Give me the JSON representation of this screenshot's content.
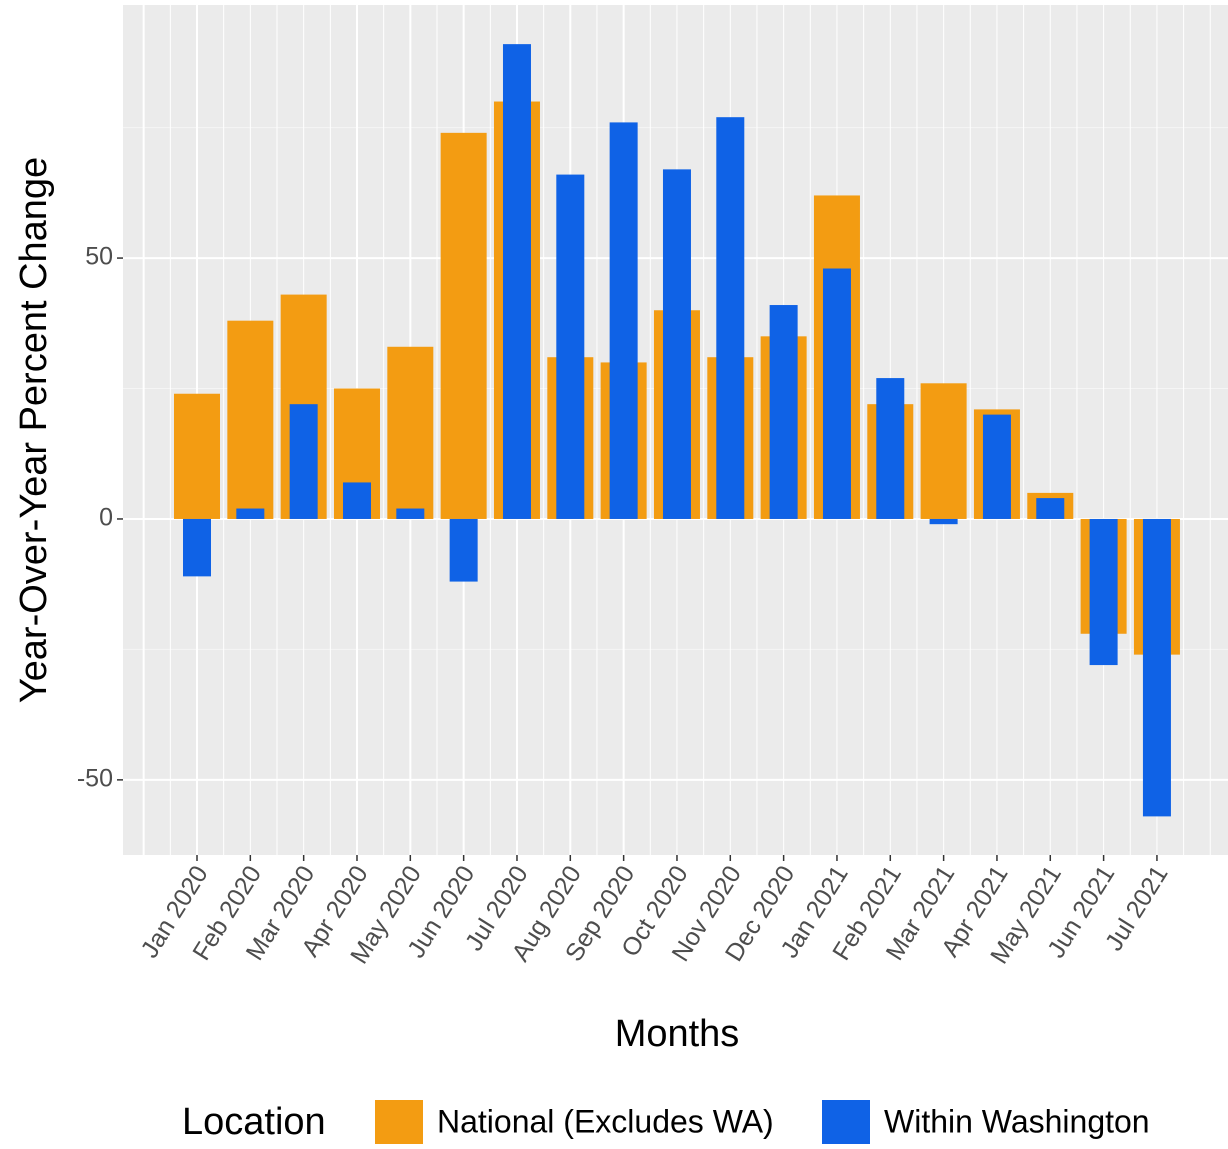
{
  "chart_data": {
    "type": "bar",
    "x_label": "Months",
    "y_label": "Year-Over-Year Percent Change",
    "legend_title": "Location",
    "categories": [
      "Jan 2020",
      "Feb 2020",
      "Mar 2020",
      "Apr 2020",
      "May 2020",
      "Jun 2020",
      "Jul 2020",
      "Aug 2020",
      "Sep 2020",
      "Oct 2020",
      "Nov 2020",
      "Dec 2020",
      "Jan 2021",
      "Feb 2021",
      "Mar 2021",
      "Apr 2021",
      "May 2021",
      "Jun 2021",
      "Jul 2021"
    ],
    "series": [
      {
        "name": "National (Excludes WA)",
        "color": "#f39c12",
        "values": [
          24,
          38,
          43,
          25,
          33,
          74,
          80,
          31,
          30,
          40,
          31,
          35,
          62,
          22,
          26,
          21,
          5,
          -22,
          -26
        ]
      },
      {
        "name": "Within Washington",
        "color": "#0f62e6",
        "values": [
          -11,
          2,
          22,
          7,
          2,
          -12,
          91,
          66,
          76,
          67,
          77,
          41,
          48,
          27,
          -1,
          20,
          4,
          -28,
          -57
        ]
      }
    ],
    "ylim": [
      -64.4,
      98.5
    ],
    "yticks": [
      -50,
      0,
      50
    ],
    "grid": true
  }
}
